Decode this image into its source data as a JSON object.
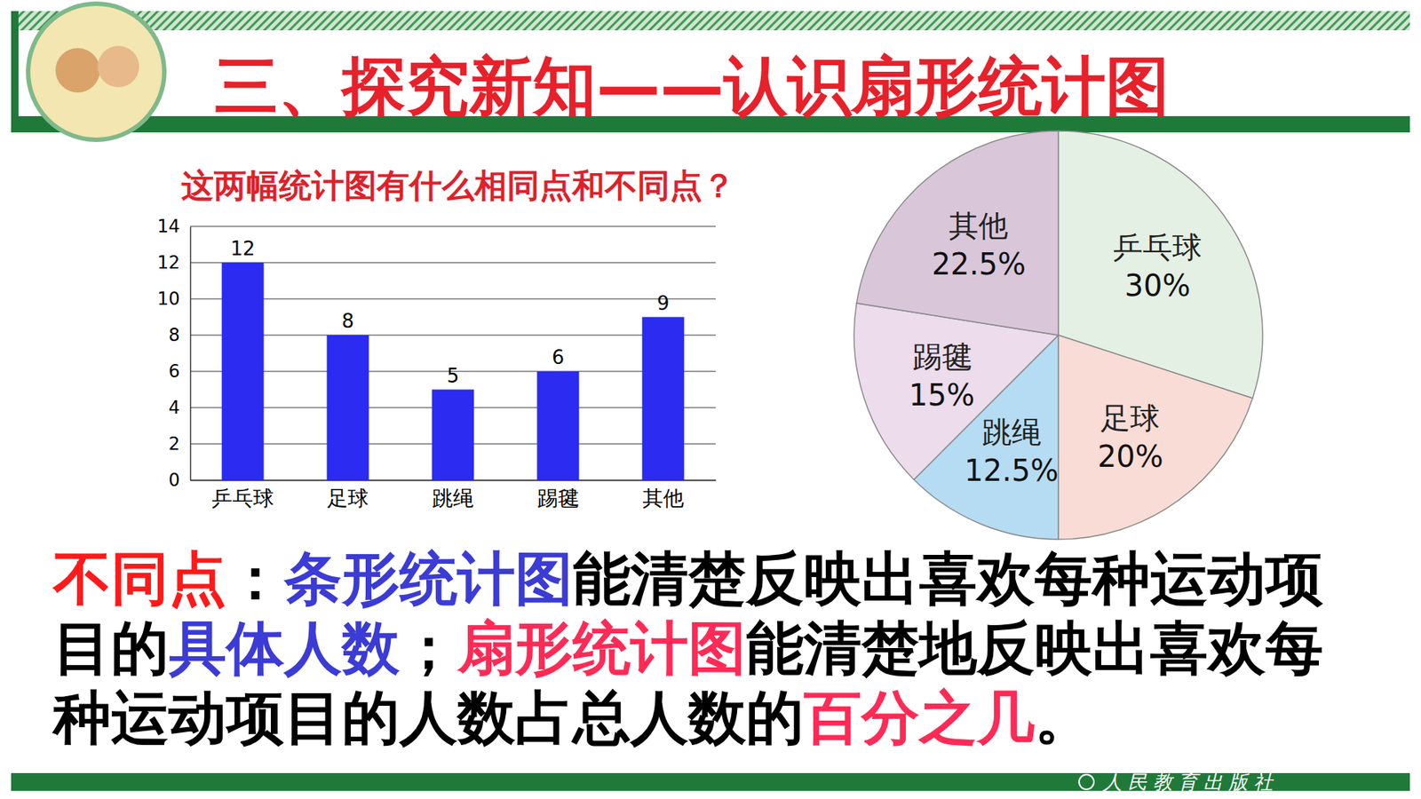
{
  "title": "三、探究新知——认识扇形统计图",
  "question": "这两幅统计图有什么相同点和不同点？",
  "conclusion": [
    "不同点",
    "：",
    "条形统计图",
    "能清楚反映出喜欢每种运动项目的",
    "具体人数",
    "；",
    "扇形统计图",
    "能清楚地反映出喜欢每种运动项目的人数占总人数的",
    "百分之几",
    "。"
  ],
  "publisher": "人民教育出版社",
  "chart_data": [
    {
      "type": "bar",
      "categories": [
        "乒乓球",
        "足球",
        "跳绳",
        "踢毽",
        "其他"
      ],
      "values": [
        12,
        8,
        5,
        6,
        9
      ],
      "color": "#2b2bf2",
      "ylim": [
        0,
        14
      ],
      "yticks": [
        0,
        2,
        4,
        6,
        8,
        10,
        12,
        14
      ],
      "grid": true,
      "data_labels": true
    },
    {
      "type": "pie",
      "categories": [
        "乒乓球",
        "足球",
        "跳绳",
        "踢毽",
        "其他"
      ],
      "values": [
        30,
        20,
        12.5,
        15,
        22.5
      ],
      "value_labels": [
        "30%",
        "20%",
        "12.5%",
        "15%",
        "22.5%"
      ],
      "colors": [
        "#e4f0e4",
        "#f8dcd5",
        "#b5dcf2",
        "#ecdcec",
        "#d9c7d9"
      ],
      "data_labels": true
    }
  ]
}
